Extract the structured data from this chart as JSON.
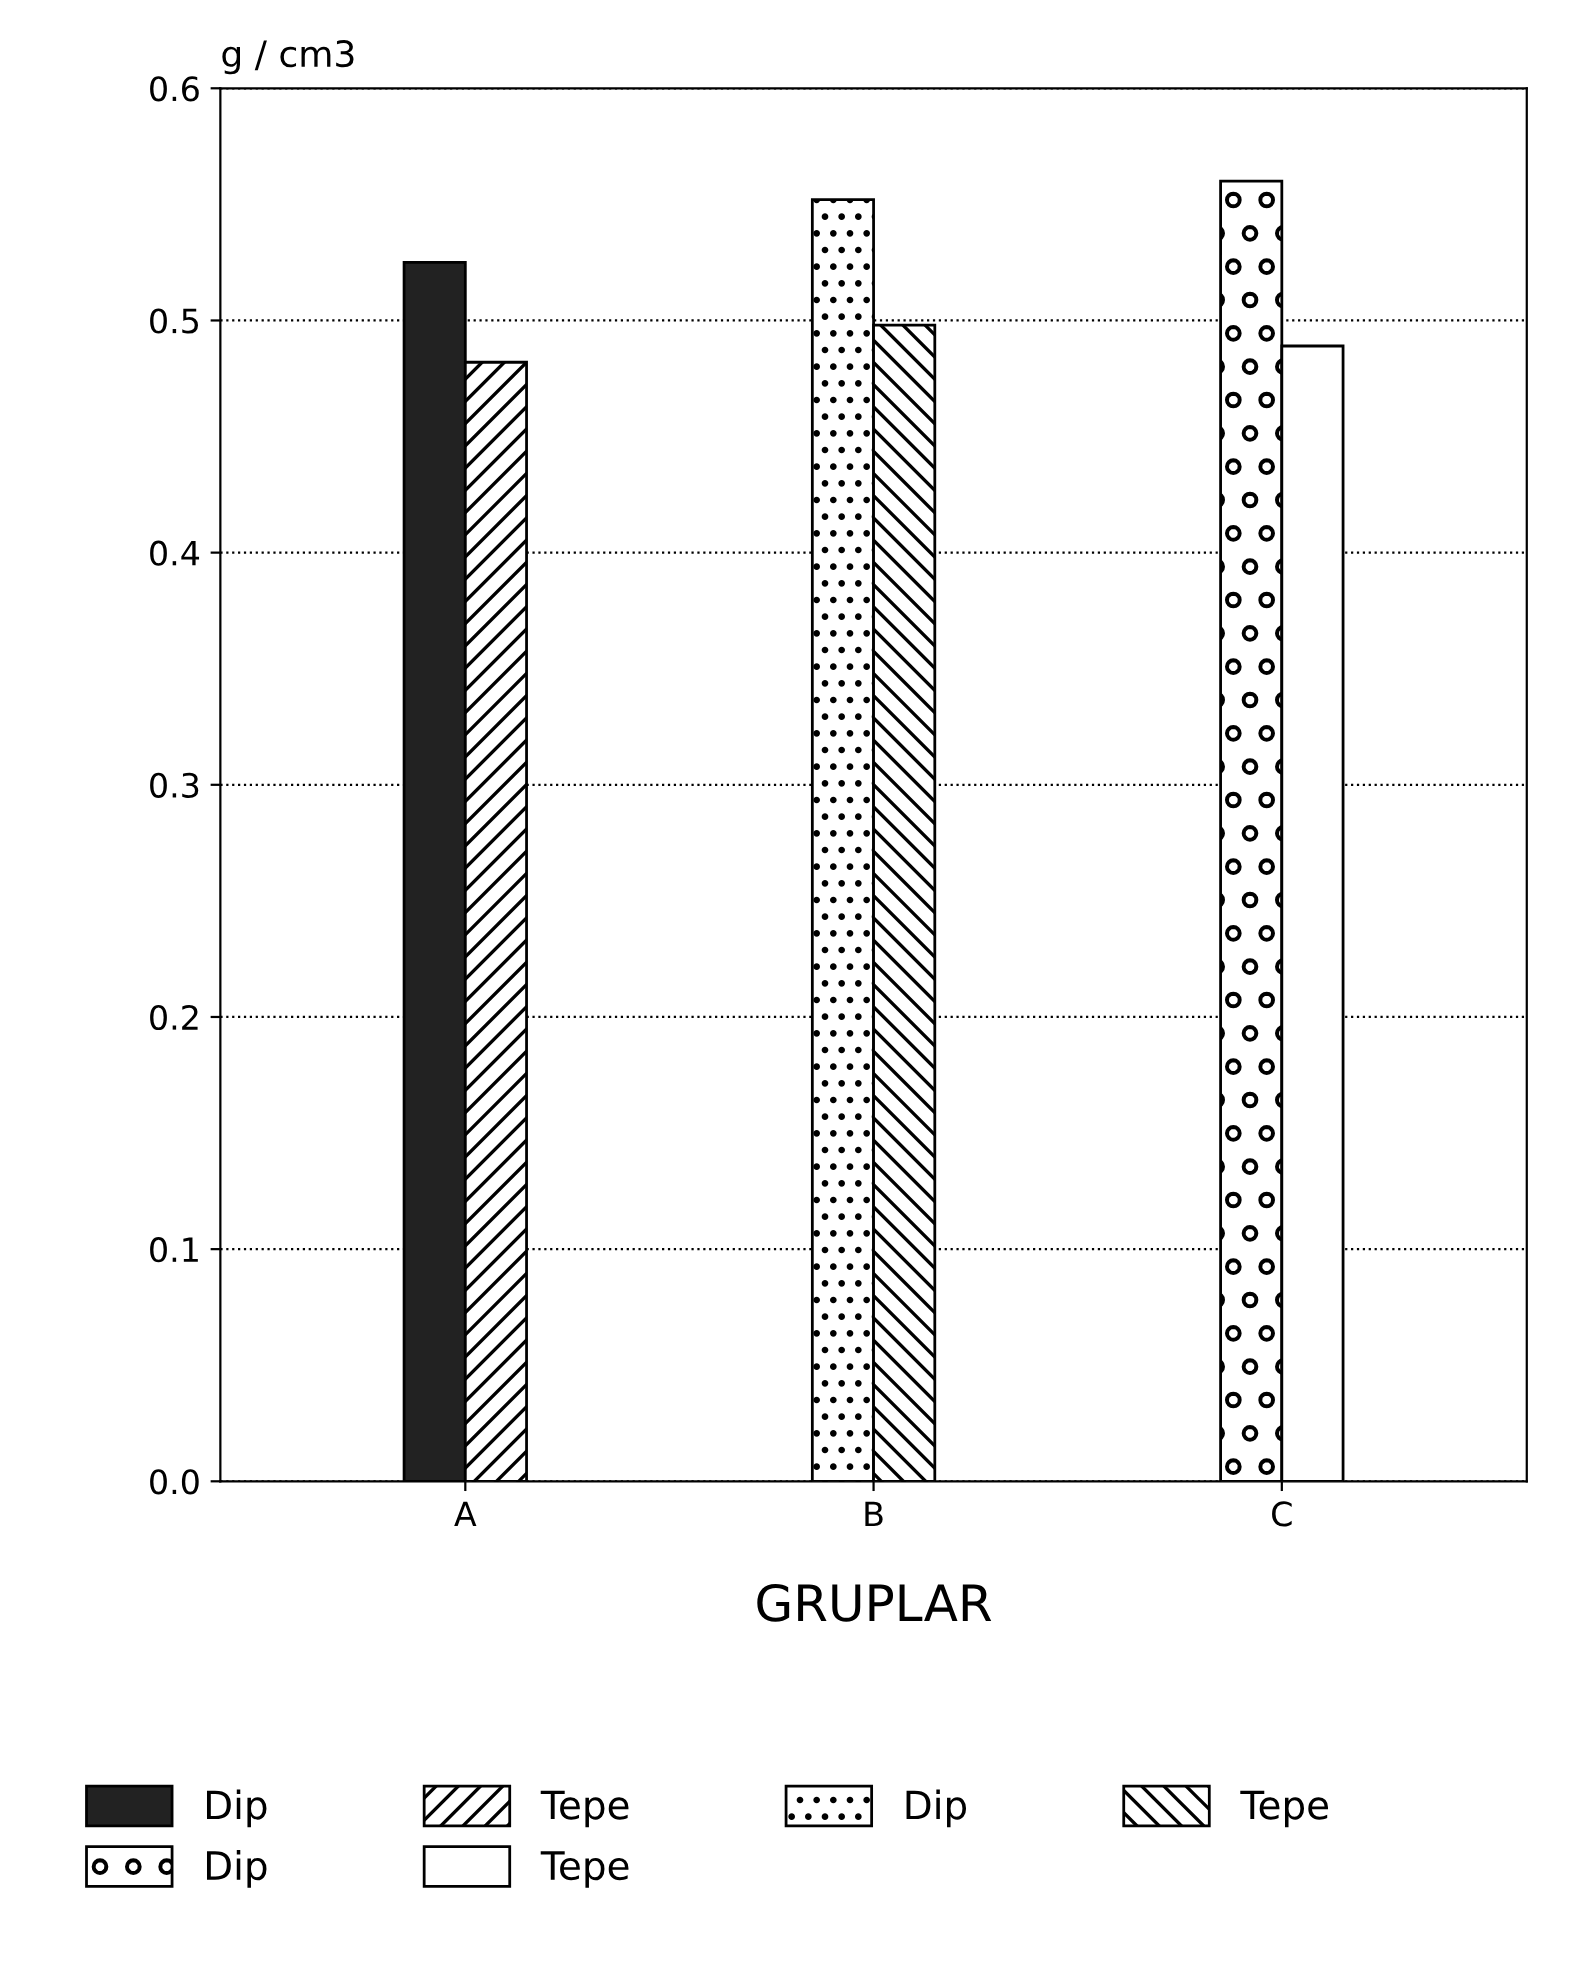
{
  "chart_data": {
    "type": "bar",
    "xlabel": "GRUPLAR",
    "ylabel": "g / cm3",
    "categories": [
      "A",
      "B",
      "C"
    ],
    "series": [
      {
        "name": "Dip",
        "color": "#222222",
        "values": [
          0.525,
          null,
          null
        ]
      },
      {
        "name": "Tepe",
        "color": "#000000",
        "values": [
          0.482,
          null,
          null
        ]
      },
      {
        "name": "Dip",
        "color": "#000000",
        "values": [
          null,
          0.552,
          null
        ]
      },
      {
        "name": "Tepe",
        "color": "#000000",
        "values": [
          null,
          0.498,
          null
        ]
      },
      {
        "name": "Dip",
        "color": "#000000",
        "values": [
          null,
          null,
          0.56
        ]
      },
      {
        "name": "Tepe",
        "color": "#ffffff",
        "values": [
          null,
          null,
          0.489
        ]
      }
    ],
    "ylim": [
      0.0,
      0.6
    ],
    "yticks": [
      {
        "value": 0,
        "label": "0.0"
      },
      0.1,
      0.2,
      0.3,
      0.4,
      0.5,
      0.6
    ],
    "grid": "y",
    "legend": "bottom"
  }
}
